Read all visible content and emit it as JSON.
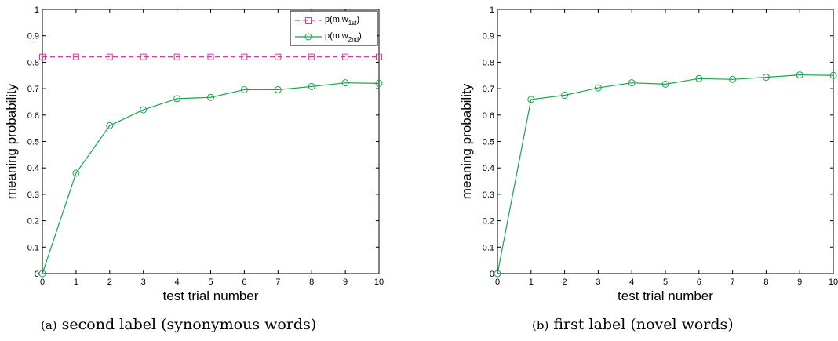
{
  "chart_data": [
    {
      "type": "line",
      "caption_tag": "(a)",
      "caption": "second label (synonymous words)",
      "xlabel": "test trial number",
      "ylabel": "meaning probability",
      "xlim": [
        0,
        10
      ],
      "ylim": [
        0,
        1
      ],
      "xticks": [
        "0",
        "1",
        "2",
        "3",
        "4",
        "5",
        "6",
        "7",
        "8",
        "9",
        "10"
      ],
      "yticks": [
        "0",
        "0.1",
        "0.2",
        "0.3",
        "0.4",
        "0.5",
        "0.6",
        "0.7",
        "0.8",
        "0.9",
        "1"
      ],
      "grid": false,
      "legend_position": "top-right",
      "x": [
        0,
        1,
        2,
        3,
        4,
        5,
        6,
        7,
        8,
        9,
        10
      ],
      "series": [
        {
          "name": "p(m|w",
          "name_sub": "1st",
          "name_close": ")",
          "marker": "square",
          "line": "dashed",
          "color": "#d63aa6",
          "values": [
            0.82,
            0.82,
            0.82,
            0.82,
            0.82,
            0.82,
            0.82,
            0.82,
            0.82,
            0.82,
            0.82
          ]
        },
        {
          "name": "p(m|w",
          "name_sub": "2nd",
          "name_close": ")",
          "marker": "circle",
          "line": "solid",
          "color": "#1aa54a",
          "values": [
            0.0,
            0.38,
            0.56,
            0.62,
            0.662,
            0.667,
            0.696,
            0.696,
            0.708,
            0.722,
            0.72
          ]
        }
      ]
    },
    {
      "type": "line",
      "caption_tag": "(b)",
      "caption": "first label (novel words)",
      "xlabel": "test trial number",
      "ylabel": "meaning probability",
      "xlim": [
        0,
        10
      ],
      "ylim": [
        0,
        1
      ],
      "xticks": [
        "0",
        "1",
        "2",
        "3",
        "4",
        "5",
        "6",
        "7",
        "8",
        "9",
        "10"
      ],
      "yticks": [
        "0",
        "0.1",
        "0.2",
        "0.3",
        "0.4",
        "0.5",
        "0.6",
        "0.7",
        "0.8",
        "0.9",
        "1"
      ],
      "grid": false,
      "x": [
        0,
        1,
        2,
        3,
        4,
        5,
        6,
        7,
        8,
        9,
        10
      ],
      "series": [
        {
          "marker": "circle",
          "line": "solid",
          "color": "#1aa54a",
          "values": [
            0.0,
            0.659,
            0.675,
            0.703,
            0.722,
            0.717,
            0.738,
            0.735,
            0.743,
            0.752,
            0.75
          ]
        }
      ]
    }
  ]
}
